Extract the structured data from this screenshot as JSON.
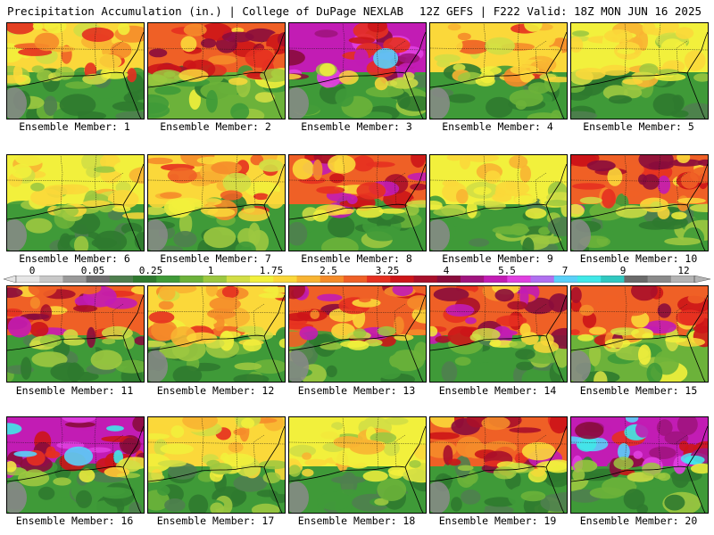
{
  "header": {
    "left": "Precipitation Accumulation (in.) | College of DuPage NEXLAB",
    "right": "12Z GEFS | F222 Valid: 18Z MON JUN 16 2025"
  },
  "colorbar": {
    "labels": [
      "0",
      "0.05",
      "0.25",
      "1",
      "1.75",
      "2.5",
      "3.25",
      "4",
      "5.5",
      "7",
      "9",
      "12"
    ],
    "colors": [
      "#e6e6e6",
      "#c8c8c8",
      "#9a9a9a",
      "#6e6e6e",
      "#4f7f4f",
      "#2f7a2f",
      "#3f9a38",
      "#6cb23a",
      "#9cc840",
      "#d2de45",
      "#f2f03c",
      "#fbd83a",
      "#f8b432",
      "#f58c2a",
      "#ef6026",
      "#e53020",
      "#cc1518",
      "#a80f2a",
      "#8a0c3c",
      "#a0147e",
      "#c21cb4",
      "#e040e0",
      "#b070f0",
      "#5ad0f8",
      "#40e8e8",
      "#30c8c0",
      "#6a6a6a",
      "#8a8a8a",
      "#b4b4b4"
    ]
  },
  "panels": [
    {
      "label": "Ensemble Member: 1",
      "north": "mid",
      "south": "green"
    },
    {
      "label": "Ensemble Member: 2",
      "north": "heavy",
      "south": "mixed"
    },
    {
      "label": "Ensemble Member: 3",
      "north": "extreme",
      "south": "green"
    },
    {
      "label": "Ensemble Member: 4",
      "north": "mid",
      "south": "green"
    },
    {
      "label": "Ensemble Member: 5",
      "north": "light",
      "south": "green"
    },
    {
      "label": "Ensemble Member: 6",
      "north": "light",
      "south": "green"
    },
    {
      "label": "Ensemble Member: 7",
      "north": "mid",
      "south": "green"
    },
    {
      "label": "Ensemble Member: 8",
      "north": "heavy",
      "south": "green"
    },
    {
      "label": "Ensemble Member: 9",
      "north": "light",
      "south": "green"
    },
    {
      "label": "Ensemble Member: 10",
      "north": "heavy",
      "south": "green"
    },
    {
      "label": "Ensemble Member: 11",
      "north": "heavy",
      "south": "green"
    },
    {
      "label": "Ensemble Member: 12",
      "north": "mid",
      "south": "green"
    },
    {
      "label": "Ensemble Member: 13",
      "north": "heavy",
      "south": "green"
    },
    {
      "label": "Ensemble Member: 14",
      "north": "heavy",
      "south": "green"
    },
    {
      "label": "Ensemble Member: 15",
      "north": "heavy",
      "south": "mixed"
    },
    {
      "label": "Ensemble Member: 16",
      "north": "extreme",
      "south": "green"
    },
    {
      "label": "Ensemble Member: 17",
      "north": "mid",
      "south": "green"
    },
    {
      "label": "Ensemble Member: 18",
      "north": "light",
      "south": "green"
    },
    {
      "label": "Ensemble Member: 19",
      "north": "heavy",
      "south": "green"
    },
    {
      "label": "Ensemble Member: 20",
      "north": "extreme",
      "south": "green"
    }
  ]
}
